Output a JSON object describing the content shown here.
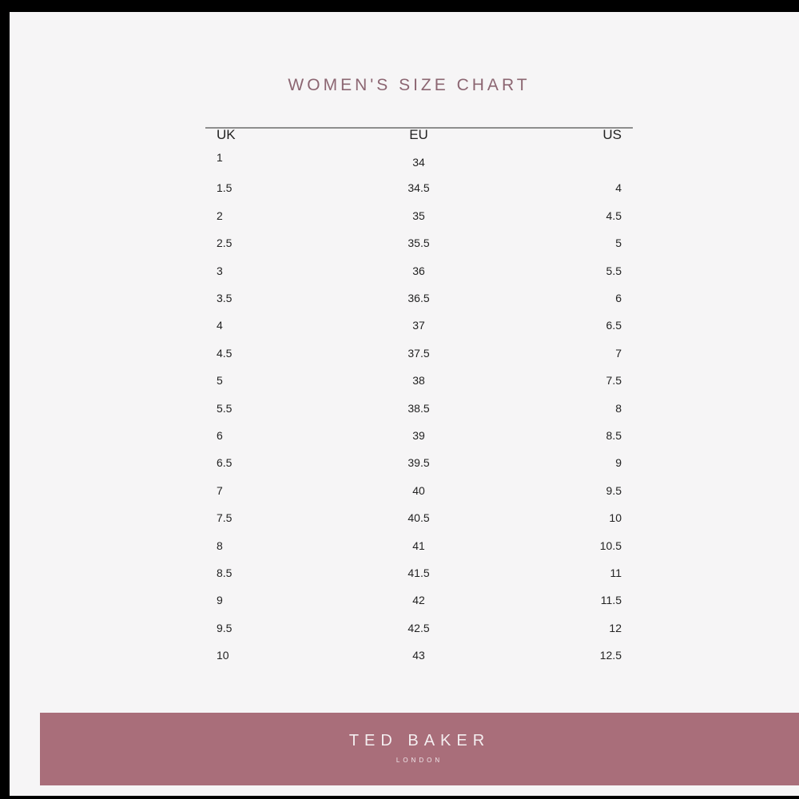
{
  "title": "WOMEN'S SIZE CHART",
  "headers": [
    "UK",
    "EU",
    "US"
  ],
  "rows": [
    [
      "1",
      "34",
      ""
    ],
    [
      "1.5",
      "34.5",
      "4"
    ],
    [
      "2",
      "35",
      "4.5"
    ],
    [
      "2.5",
      "35.5",
      "5"
    ],
    [
      "3",
      "36",
      "5.5"
    ],
    [
      "3.5",
      "36.5",
      "6"
    ],
    [
      "4",
      "37",
      "6.5"
    ],
    [
      "4.5",
      "37.5",
      "7"
    ],
    [
      "5",
      "38",
      "7.5"
    ],
    [
      "5.5",
      "38.5",
      "8"
    ],
    [
      "6",
      "39",
      "8.5"
    ],
    [
      "6.5",
      "39.5",
      "9"
    ],
    [
      "7",
      "40",
      "9.5"
    ],
    [
      "7.5",
      "40.5",
      "10"
    ],
    [
      "8",
      "41",
      "10.5"
    ],
    [
      "8.5",
      "41.5",
      "11"
    ],
    [
      "9",
      "42",
      "11.5"
    ],
    [
      "9.5",
      "42.5",
      "12"
    ],
    [
      "10",
      "43",
      "12.5"
    ]
  ],
  "banner": {
    "brand": "TED BAKER",
    "subtitle": "LONDON",
    "color": "#a96e7a"
  },
  "colors": {
    "title": "#8c6672",
    "background": "#f6f5f6"
  }
}
